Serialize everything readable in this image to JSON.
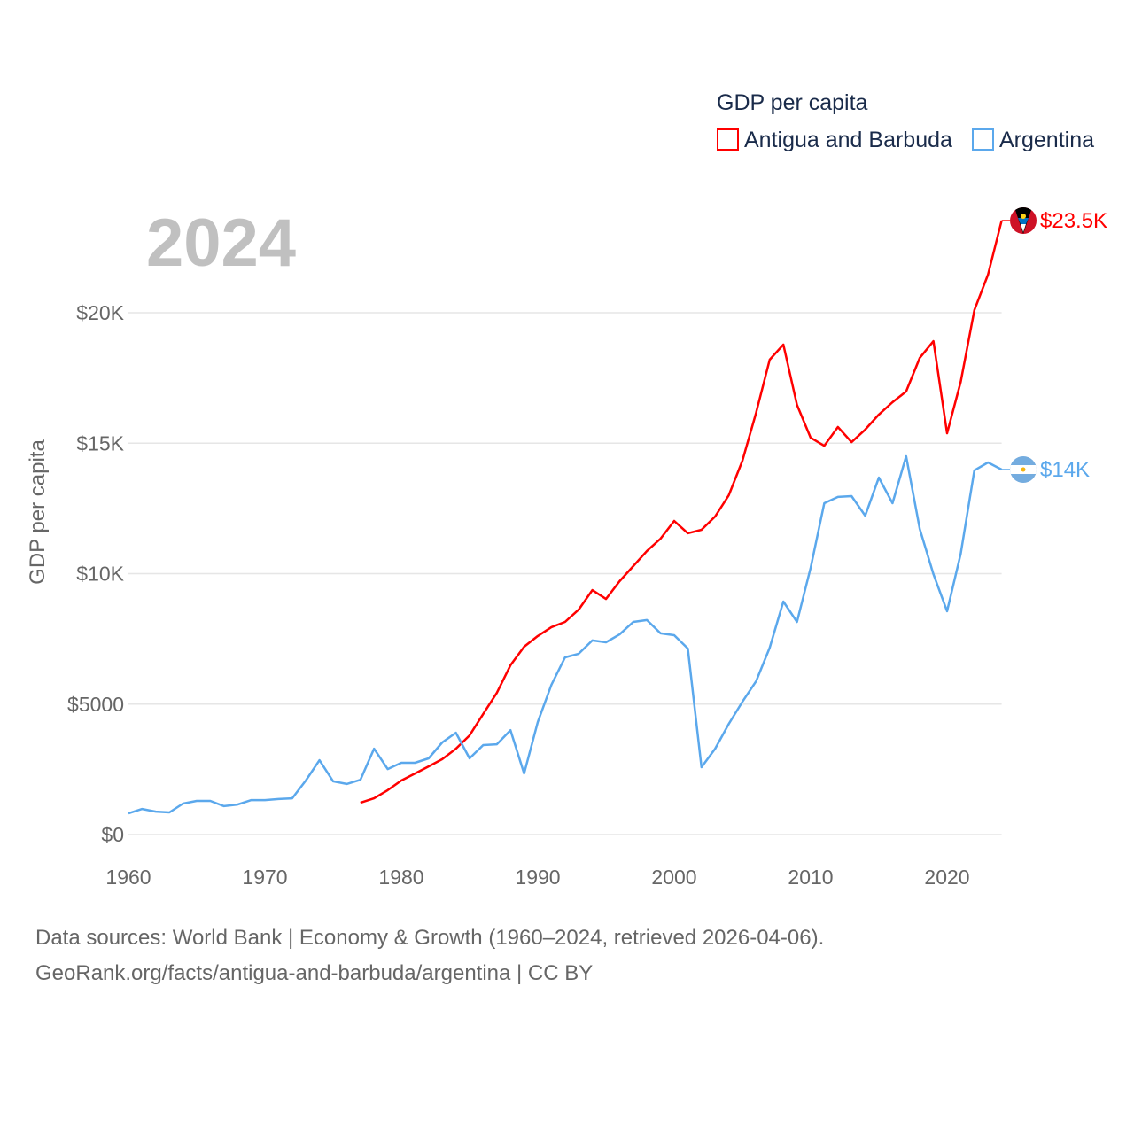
{
  "chart_data": {
    "type": "line",
    "title": "GDP per capita",
    "year_label": "2024",
    "xlabel": "",
    "ylabel": "GDP per capita",
    "xlim": [
      1960,
      2024
    ],
    "ylim": [
      0,
      25000
    ],
    "x_ticks": [
      1960,
      1970,
      1980,
      1990,
      2000,
      2010,
      2020
    ],
    "y_ticks": [
      {
        "v": 0,
        "label": "$0"
      },
      {
        "v": 5000,
        "label": "$5000"
      },
      {
        "v": 10000,
        "label": "$10K"
      },
      {
        "v": 15000,
        "label": "$15K"
      },
      {
        "v": 20000,
        "label": "$20K"
      }
    ],
    "grid": true,
    "legend_position": "top-right",
    "series": [
      {
        "name": "Antigua and Barbuda",
        "color": "#ff0000",
        "end_label": "$23.5K",
        "start_year": 1977,
        "values": [
          1220,
          1390,
          1700,
          2070,
          2340,
          2610,
          2890,
          3290,
          3800,
          4620,
          5430,
          6490,
          7200,
          7610,
          7950,
          8150,
          8620,
          9370,
          9030,
          9710,
          10290,
          10870,
          11340,
          12020,
          11550,
          11680,
          12190,
          13000,
          14330,
          16160,
          18200,
          18780,
          16470,
          15210,
          14900,
          15620,
          15040,
          15520,
          16100,
          16570,
          16980,
          18270,
          18910,
          15380,
          17350,
          20100,
          21460,
          23530
        ]
      },
      {
        "name": "Argentina",
        "color": "#5ba8ec",
        "end_label": "$14K",
        "start_year": 1960,
        "values": [
          810,
          980,
          880,
          850,
          1190,
          1290,
          1290,
          1090,
          1150,
          1320,
          1320,
          1360,
          1390,
          2070,
          2850,
          2040,
          1940,
          2100,
          3290,
          2510,
          2750,
          2750,
          2920,
          3530,
          3900,
          2920,
          3430,
          3460,
          4000,
          2340,
          4310,
          5740,
          6790,
          6930,
          7440,
          7370,
          7670,
          8150,
          8220,
          7710,
          7640,
          7130,
          2580,
          3290,
          4240,
          5090,
          5870,
          7160,
          8930,
          8150,
          10220,
          12700,
          12940,
          12970,
          12220,
          13680,
          12700,
          14500,
          11710,
          9980,
          8560,
          10760,
          13960,
          14260,
          13990
        ]
      }
    ]
  },
  "footer": {
    "line1": "Data sources: World Bank | Economy & Growth (1960–2024, retrieved 2026-04-06).",
    "line2": "GeoRank.org/facts/antigua-and-barbuda/argentina | CC BY"
  }
}
